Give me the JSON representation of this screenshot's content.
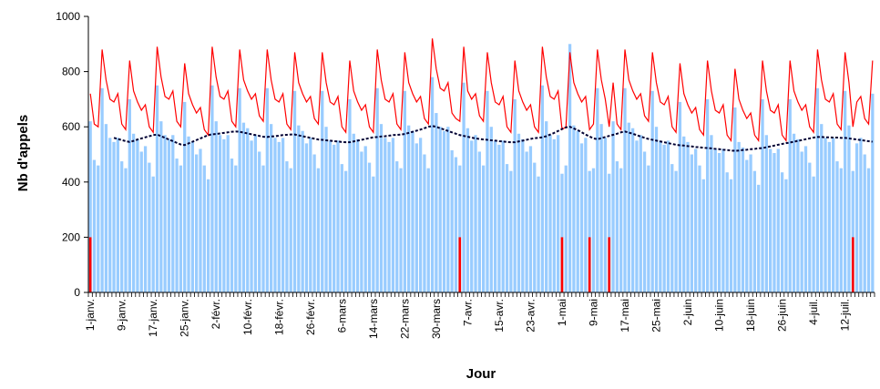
{
  "chart_data": {
    "type": "bar",
    "x_label": "Jour",
    "y_label": "Nb d'appels",
    "ylim": [
      0,
      1000
    ],
    "yticks": [
      0,
      200,
      400,
      600,
      800,
      1000
    ],
    "categories": [
      "1-janv.",
      null,
      null,
      null,
      null,
      null,
      null,
      null,
      "9-janv.",
      null,
      null,
      null,
      null,
      null,
      null,
      null,
      "17-janv.",
      null,
      null,
      null,
      null,
      null,
      null,
      null,
      "25-janv.",
      null,
      null,
      null,
      null,
      null,
      null,
      null,
      "2-févr.",
      null,
      null,
      null,
      null,
      null,
      null,
      null,
      "10-févr.",
      null,
      null,
      null,
      null,
      null,
      null,
      null,
      "18-févr.",
      null,
      null,
      null,
      null,
      null,
      null,
      null,
      "26-févr.",
      null,
      null,
      null,
      null,
      null,
      null,
      null,
      "6-mars",
      null,
      null,
      null,
      null,
      null,
      null,
      null,
      "14-mars",
      null,
      null,
      null,
      null,
      null,
      null,
      null,
      "22-mars",
      null,
      null,
      null,
      null,
      null,
      null,
      null,
      "30-mars",
      null,
      null,
      null,
      null,
      null,
      null,
      null,
      "7-avr.",
      null,
      null,
      null,
      null,
      null,
      null,
      null,
      "15-avr.",
      null,
      null,
      null,
      null,
      null,
      null,
      null,
      "23-avr.",
      null,
      null,
      null,
      null,
      null,
      null,
      null,
      "1-mai",
      null,
      null,
      null,
      null,
      null,
      null,
      null,
      "9-mai",
      null,
      null,
      null,
      null,
      null,
      null,
      null,
      "17-mai",
      null,
      null,
      null,
      null,
      null,
      null,
      null,
      "25-mai",
      null,
      null,
      null,
      null,
      null,
      null,
      null,
      "2-juin",
      null,
      null,
      null,
      null,
      null,
      null,
      null,
      "10-juin",
      null,
      null,
      null,
      null,
      null,
      null,
      null,
      "18-juin",
      null,
      null,
      null,
      null,
      null,
      null,
      null,
      "26-juin",
      null,
      null,
      null,
      null,
      null,
      null,
      null,
      "4-juil.",
      null,
      null,
      null,
      null,
      null,
      null,
      null,
      "12-juil.",
      null,
      null,
      null,
      null,
      null,
      null,
      null
    ],
    "series": [
      {
        "type": "bar",
        "color": "#99ccff",
        "values": [
          620,
          480,
          460,
          740,
          610,
          560,
          545,
          560,
          475,
          450,
          700,
          575,
          555,
          510,
          530,
          470,
          420,
          750,
          620,
          570,
          555,
          570,
          485,
          460,
          690,
          565,
          545,
          500,
          520,
          460,
          410,
          750,
          620,
          570,
          555,
          570,
          485,
          460,
          740,
          615,
          595,
          550,
          570,
          510,
          460,
          740,
          610,
          560,
          545,
          560,
          475,
          450,
          730,
          605,
          585,
          540,
          560,
          500,
          450,
          730,
          600,
          550,
          535,
          550,
          465,
          440,
          700,
          575,
          555,
          510,
          530,
          470,
          420,
          740,
          610,
          560,
          545,
          560,
          475,
          450,
          730,
          605,
          585,
          540,
          560,
          500,
          450,
          780,
          650,
          600,
          585,
          600,
          515,
          490,
          460,
          760,
          595,
          550,
          570,
          510,
          460,
          730,
          600,
          550,
          535,
          550,
          465,
          440,
          700,
          575,
          555,
          510,
          530,
          470,
          420,
          750,
          620,
          570,
          555,
          570,
          430,
          460,
          900,
          605,
          585,
          540,
          560,
          440,
          450,
          740,
          610,
          560,
          430,
          620,
          475,
          450,
          740,
          615,
          595,
          550,
          570,
          510,
          460,
          730,
          600,
          550,
          535,
          550,
          465,
          440,
          690,
          565,
          545,
          500,
          520,
          460,
          410,
          700,
          570,
          520,
          505,
          520,
          435,
          410,
          670,
          545,
          525,
          480,
          500,
          440,
          390,
          700,
          570,
          520,
          505,
          520,
          435,
          410,
          700,
          575,
          555,
          510,
          530,
          470,
          420,
          740,
          610,
          560,
          545,
          560,
          475,
          450,
          730,
          605,
          440,
          540,
          560,
          500,
          450,
          720
        ]
      },
      {
        "type": "line",
        "color": "#ff0000",
        "values": [
          720,
          610,
          600,
          880,
          770,
          700,
          690,
          720,
          610,
          590,
          840,
          730,
          690,
          660,
          680,
          600,
          580,
          890,
          780,
          710,
          700,
          730,
          620,
          600,
          830,
          720,
          680,
          650,
          670,
          590,
          570,
          890,
          780,
          710,
          700,
          730,
          620,
          600,
          880,
          770,
          730,
          700,
          720,
          640,
          620,
          880,
          770,
          700,
          690,
          720,
          610,
          590,
          870,
          760,
          720,
          690,
          710,
          630,
          610,
          870,
          760,
          690,
          680,
          710,
          600,
          580,
          840,
          730,
          690,
          660,
          680,
          600,
          580,
          880,
          770,
          700,
          690,
          720,
          610,
          590,
          870,
          760,
          720,
          690,
          710,
          630,
          610,
          920,
          810,
          740,
          730,
          760,
          650,
          630,
          620,
          890,
          730,
          700,
          720,
          640,
          620,
          870,
          760,
          690,
          680,
          710,
          600,
          580,
          840,
          730,
          690,
          660,
          680,
          600,
          580,
          890,
          780,
          710,
          700,
          730,
          590,
          600,
          870,
          760,
          720,
          690,
          710,
          590,
          610,
          880,
          770,
          700,
          600,
          760,
          610,
          590,
          880,
          770,
          730,
          700,
          720,
          640,
          620,
          870,
          760,
          690,
          680,
          710,
          600,
          580,
          830,
          720,
          680,
          650,
          670,
          590,
          570,
          840,
          730,
          660,
          650,
          680,
          570,
          550,
          810,
          700,
          660,
          630,
          650,
          570,
          550,
          840,
          730,
          660,
          650,
          680,
          570,
          550,
          840,
          730,
          690,
          660,
          680,
          600,
          580,
          880,
          770,
          700,
          690,
          720,
          610,
          590,
          870,
          760,
          600,
          690,
          710,
          630,
          610,
          840
        ]
      },
      {
        "type": "line",
        "dashed": true,
        "color": "#000033",
        "values": [
          null,
          null,
          null,
          null,
          null,
          null,
          560,
          556,
          552,
          548,
          545,
          549,
          554,
          558,
          562,
          566,
          570,
          572,
          566,
          560,
          554,
          548,
          542,
          536,
          534,
          540,
          546,
          552,
          558,
          564,
          570,
          573,
          574,
          576,
          578,
          580,
          582,
          583,
          582,
          579,
          576,
          573,
          570,
          567,
          564,
          563,
          565,
          566,
          568,
          570,
          571,
          572,
          572,
          569,
          566,
          563,
          560,
          557,
          554,
          553,
          551,
          550,
          548,
          547,
          545,
          544,
          544,
          547,
          550,
          553,
          556,
          559,
          562,
          563,
          565,
          566,
          568,
          570,
          571,
          572,
          574,
          578,
          582,
          586,
          590,
          595,
          600,
          603,
          600,
          595,
          590,
          585,
          580,
          575,
          570,
          567,
          564,
          561,
          558,
          556,
          554,
          553,
          551,
          550,
          548,
          547,
          545,
          544,
          544,
          547,
          550,
          553,
          556,
          559,
          560,
          562,
          566,
          572,
          578,
          585,
          592,
          598,
          600,
          594,
          588,
          580,
          572,
          565,
          558,
          555,
          559,
          563,
          567,
          571,
          575,
          580,
          583,
          579,
          575,
          570,
          565,
          560,
          556,
          553,
          550,
          547,
          544,
          541,
          538,
          535,
          533,
          532,
          530,
          529,
          527,
          526,
          524,
          523,
          522,
          520,
          519,
          517,
          516,
          514,
          513,
          514,
          516,
          517,
          519,
          520,
          522,
          523,
          526,
          529,
          532,
          535,
          538,
          541,
          543,
          546,
          549,
          552,
          555,
          558,
          561,
          563,
          563,
          562,
          562,
          561,
          561,
          560,
          560,
          558,
          556,
          554,
          552,
          550,
          548,
          546
        ]
      },
      {
        "type": "spike",
        "color": "#ff0000",
        "values": [
          200,
          null,
          null,
          null,
          null,
          null,
          null,
          null,
          null,
          null,
          null,
          null,
          null,
          null,
          null,
          null,
          null,
          null,
          null,
          null,
          null,
          null,
          null,
          null,
          null,
          null,
          null,
          null,
          null,
          null,
          null,
          null,
          null,
          null,
          null,
          null,
          null,
          null,
          null,
          null,
          null,
          null,
          null,
          null,
          null,
          null,
          null,
          null,
          null,
          null,
          null,
          null,
          null,
          null,
          null,
          null,
          null,
          null,
          null,
          null,
          null,
          null,
          null,
          null,
          null,
          null,
          null,
          null,
          null,
          null,
          null,
          null,
          null,
          null,
          null,
          null,
          null,
          null,
          null,
          null,
          null,
          null,
          null,
          null,
          null,
          null,
          null,
          null,
          null,
          null,
          null,
          null,
          null,
          null,
          200,
          null,
          null,
          null,
          null,
          null,
          null,
          null,
          null,
          null,
          null,
          null,
          null,
          null,
          null,
          null,
          null,
          null,
          null,
          null,
          null,
          null,
          null,
          null,
          null,
          null,
          200,
          null,
          null,
          null,
          null,
          null,
          null,
          200,
          null,
          null,
          null,
          null,
          200,
          null,
          null,
          null,
          null,
          null,
          null,
          null,
          null,
          null,
          null,
          null,
          null,
          null,
          null,
          null,
          null,
          null,
          null,
          null,
          null,
          null,
          null,
          null,
          null,
          null,
          null,
          null,
          null,
          null,
          null,
          null,
          null,
          null,
          null,
          null,
          null,
          null,
          null,
          null,
          null,
          null,
          null,
          null,
          null,
          null,
          null,
          null,
          null,
          null,
          null,
          null,
          null,
          null,
          null,
          null,
          null,
          null,
          null,
          null,
          null,
          null,
          200,
          null,
          null,
          null,
          null,
          null
        ]
      }
    ]
  }
}
